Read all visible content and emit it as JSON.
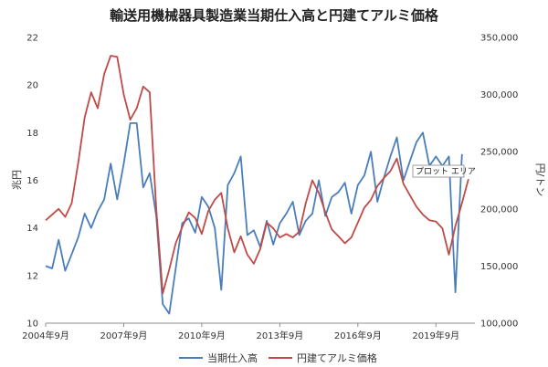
{
  "chart_data": {
    "type": "line",
    "title": "輸送用機械器具製造業当期仕入高と円建てアルミ価格",
    "ylabel": "兆円",
    "y2label": "円/トン",
    "ylim": [
      10,
      22
    ],
    "y2lim": [
      100000,
      350000
    ],
    "yticks": [
      "10",
      "12",
      "14",
      "16",
      "18",
      "20",
      "22"
    ],
    "y2ticks": [
      "100,000",
      "150,000",
      "200,000",
      "250,000",
      "300,000",
      "350,000"
    ],
    "xticks": [
      "2004年9月",
      "2007年9月",
      "2010年9月",
      "2013年9月",
      "2016年9月",
      "2019年9月"
    ],
    "xtick_positions": [
      0,
      12,
      24,
      36,
      48,
      60
    ],
    "grid": false,
    "legend": "bottom",
    "tooltip": "プロット エリア",
    "series": [
      {
        "name": "当期仕入高",
        "axis": "left",
        "color": "#4A7EBB",
        "x": [
          0,
          1,
          2,
          3,
          4,
          5,
          6,
          7,
          8,
          9,
          10,
          11,
          12,
          13,
          14,
          15,
          16,
          17,
          18,
          19,
          20,
          21,
          22,
          23,
          24,
          25,
          26,
          27,
          28,
          29,
          30,
          31,
          32,
          33,
          34,
          35,
          36,
          37,
          38,
          39,
          40,
          41,
          42,
          43,
          44,
          45,
          46,
          47,
          48,
          49,
          50,
          51,
          52,
          53,
          54,
          55,
          56,
          57,
          58,
          59,
          60,
          61,
          62,
          63,
          64
        ],
        "y": [
          12.4,
          12.3,
          13.5,
          12.2,
          12.9,
          13.6,
          14.6,
          14.0,
          14.7,
          15.2,
          16.7,
          15.2,
          16.7,
          18.4,
          18.4,
          15.7,
          16.3,
          14.5,
          10.8,
          10.4,
          12.3,
          14.2,
          14.4,
          13.8,
          15.3,
          14.9,
          14.0,
          11.4,
          15.8,
          16.3,
          17.0,
          13.7,
          13.9,
          13.2,
          14.3,
          13.3,
          14.2,
          14.6,
          15.1,
          13.7,
          14.3,
          14.6,
          16.0,
          14.5,
          15.3,
          15.5,
          15.9,
          14.6,
          15.8,
          16.2,
          17.2,
          15.1,
          16.1,
          17.0,
          17.8,
          16.0,
          16.8,
          17.6,
          18.0,
          16.6,
          17.0,
          16.6,
          17.0,
          11.3,
          17.1
        ]
      },
      {
        "name": "円建てアルミ価格",
        "axis": "right",
        "color": "#BE4B48",
        "x": [
          0,
          1,
          2,
          3,
          4,
          5,
          6,
          7,
          8,
          9,
          10,
          11,
          12,
          13,
          14,
          15,
          16,
          17,
          18,
          19,
          20,
          21,
          22,
          23,
          24,
          25,
          26,
          27,
          28,
          29,
          30,
          31,
          32,
          33,
          34,
          35,
          36,
          37,
          38,
          39,
          40,
          41,
          42,
          43,
          44,
          45,
          46,
          47,
          48,
          49,
          50,
          51,
          52,
          53,
          54,
          55,
          56,
          57,
          58,
          59,
          60,
          61,
          62,
          63,
          64,
          65
        ],
        "y": [
          190000,
          195000,
          200000,
          193000,
          205000,
          240000,
          280000,
          302000,
          288000,
          318000,
          334000,
          333000,
          300000,
          278000,
          288000,
          307000,
          302000,
          200000,
          126000,
          147000,
          170000,
          184000,
          197000,
          192000,
          178000,
          198000,
          208000,
          214000,
          183000,
          162000,
          176000,
          160000,
          152000,
          165000,
          188000,
          183000,
          175000,
          178000,
          175000,
          180000,
          205000,
          225000,
          214000,
          197000,
          182000,
          176000,
          170000,
          175000,
          188000,
          201000,
          208000,
          220000,
          227000,
          233000,
          244000,
          222000,
          212000,
          202000,
          195000,
          190000,
          189000,
          183000,
          160000,
          185000,
          205000,
          226000
        ]
      }
    ]
  }
}
